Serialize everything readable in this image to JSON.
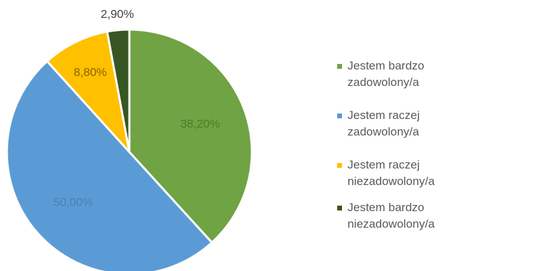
{
  "chart_data": {
    "type": "pie",
    "categories": [
      "Jestem bardzo zadowolony/a",
      "Jestem raczej zadowolony/a",
      "Jestem raczej niezadowolony/a",
      "Jestem bardzo niezadowolony/a"
    ],
    "values": [
      38.2,
      50.0,
      8.8,
      2.9
    ],
    "data_labels": [
      "38,20%",
      "50,00%",
      "8,80%",
      "2,90%"
    ],
    "colors": [
      "#70a343",
      "#5b9bd5",
      "#ffc000",
      "#375623"
    ],
    "label_colors": [
      "#4f7a2a",
      "#4a7fb5",
      "#8a6200",
      "#404040"
    ],
    "legend_position": "right",
    "start_angle_deg": 0,
    "direction": "clockwise"
  }
}
